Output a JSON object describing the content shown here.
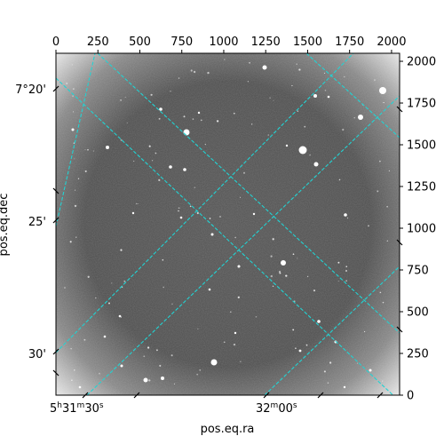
{
  "figure": {
    "xlabel": "pos.eq.ra",
    "ylabel": "pos.eq.dec",
    "pixel_axes": {
      "top_ticks": [
        "0",
        "250",
        "500",
        "750",
        "1000",
        "1250",
        "1500",
        "1750",
        "2000"
      ],
      "top_range": [
        0,
        2048
      ],
      "right_ticks": [
        "0",
        "250",
        "500",
        "750",
        "1000",
        "1250",
        "1500",
        "1750",
        "2000"
      ],
      "right_range": [
        0,
        2048
      ]
    },
    "world_axes": {
      "ra_ticks": [
        {
          "h": "5",
          "m": "31",
          "s": "30"
        },
        {
          "h": "",
          "m": "32",
          "s": "00"
        }
      ],
      "dec_ticks": [
        "7°20'",
        "25'",
        "30'"
      ]
    },
    "grid_color": "#22d3d3",
    "image_colormap": "gray"
  }
}
